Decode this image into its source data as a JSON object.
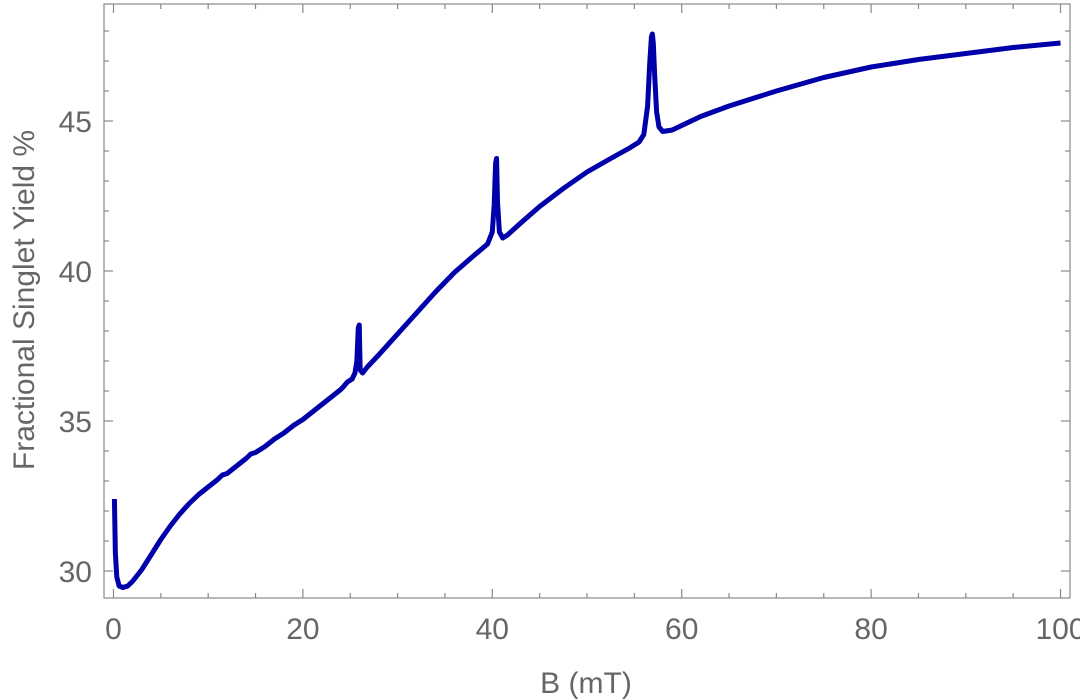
{
  "chart_data": {
    "type": "line",
    "xlabel": "B (mT)",
    "ylabel": "Fractional Singlet Yield %",
    "xlim": [
      -1,
      101
    ],
    "ylim": [
      29.1,
      48.9
    ],
    "xticks": [
      0,
      20,
      40,
      60,
      80,
      100
    ],
    "xtick_labels": [
      "0",
      "20",
      "40",
      "60",
      "80",
      "100"
    ],
    "yticks": [
      30,
      35,
      40,
      45
    ],
    "ytick_labels": [
      "30",
      "35",
      "40",
      "45"
    ],
    "grid": false,
    "line_color": "#0000aa",
    "series": [
      {
        "x": [
          0.1,
          0.2,
          0.35,
          0.6,
          1.0,
          1.5,
          2.0,
          3.0,
          4.0,
          5.0,
          6.0,
          7.0,
          8.0,
          9.0,
          10.0,
          11.0,
          11.5,
          12.0,
          13.0,
          14.0,
          14.5,
          15.0,
          16.0,
          17.0,
          18.0,
          19.0,
          20.0,
          21.0,
          22.0,
          23.0,
          23.8,
          24.0,
          24.3,
          24.7,
          25.2,
          25.5,
          25.7,
          25.85,
          25.95,
          26.05,
          26.3,
          26.8,
          28.0,
          30.0,
          32.0,
          34.0,
          36.0,
          38.0,
          39.5,
          40.0,
          40.2,
          40.35,
          40.45,
          40.55,
          40.75,
          41.1,
          41.6,
          43.0,
          45.0,
          47.5,
          50.0,
          52.5,
          54.5,
          55.5,
          56.0,
          56.4,
          56.6,
          56.8,
          56.9,
          57.0,
          57.15,
          57.35,
          57.6,
          58.0,
          59.0,
          60.0,
          62.0,
          65.0,
          70.0,
          75.0,
          80.0,
          85.0,
          90.0,
          95.0,
          100.0
        ],
        "y": [
          32.4,
          30.6,
          29.8,
          29.5,
          29.45,
          29.5,
          29.65,
          30.05,
          30.55,
          31.05,
          31.5,
          31.9,
          32.25,
          32.55,
          32.8,
          33.05,
          33.2,
          33.25,
          33.5,
          33.75,
          33.9,
          33.95,
          34.15,
          34.4,
          34.6,
          34.85,
          35.05,
          35.3,
          35.55,
          35.8,
          36.0,
          36.05,
          36.15,
          36.3,
          36.4,
          36.6,
          37.0,
          38.1,
          38.2,
          36.7,
          36.6,
          36.8,
          37.2,
          37.9,
          38.6,
          39.3,
          39.95,
          40.5,
          40.9,
          41.3,
          42.2,
          43.6,
          43.75,
          42.3,
          41.3,
          41.1,
          41.2,
          41.6,
          42.15,
          42.75,
          43.3,
          43.75,
          44.1,
          44.3,
          44.55,
          45.5,
          46.8,
          47.8,
          47.9,
          47.6,
          46.5,
          45.3,
          44.8,
          44.65,
          44.7,
          44.85,
          45.15,
          45.5,
          46.0,
          46.45,
          46.8,
          47.05,
          47.25,
          47.45,
          47.6
        ]
      }
    ]
  }
}
